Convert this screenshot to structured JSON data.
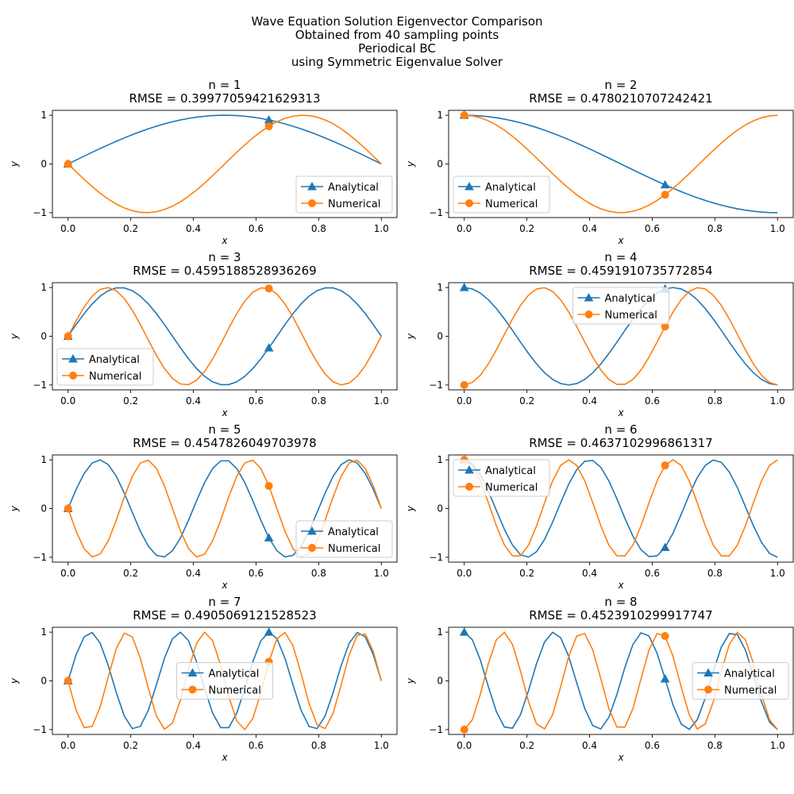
{
  "figure": {
    "suptitle": [
      "Wave Equation Solution Eigenvector Comparison",
      "Obtained from 40 sampling points",
      "Periodical BC",
      "using Symmetric Eigenvalue Solver"
    ]
  },
  "style": {
    "analytical_color": "#1f77b4",
    "numerical_color": "#ff7f0e",
    "analytical_marker": "triangle-up",
    "numerical_marker": "circle",
    "markevery_indices": [
      0,
      25
    ],
    "grid": false
  },
  "chart_data": [
    {
      "type": "line",
      "title": [
        "n = 1",
        "RMSE = 0.39977059421629313"
      ],
      "xlabel": "x",
      "ylabel": "y",
      "xlim": [
        -0.05,
        1.05
      ],
      "ylim": [
        -1.1,
        1.1
      ],
      "xticks": [
        "0.0",
        "0.2",
        "0.4",
        "0.6",
        "0.8",
        "1.0"
      ],
      "yticks": [
        "−1",
        "0",
        "1"
      ],
      "legend": {
        "position": "lower right",
        "entries": [
          "Analytical",
          "Numerical"
        ]
      },
      "series": [
        {
          "name": "Analytical",
          "formula": "y = sin(pi*x)",
          "n_points": 40,
          "x_range": [
            0,
            1
          ]
        },
        {
          "name": "Numerical",
          "formula": "y = -sin(2*pi*x)",
          "n_points": 40,
          "x_range": [
            0,
            1
          ]
        }
      ]
    },
    {
      "type": "line",
      "title": [
        "n = 2",
        "RMSE = 0.4780210707242421"
      ],
      "xlabel": "x",
      "ylabel": "y",
      "xlim": [
        -0.05,
        1.05
      ],
      "ylim": [
        -1.1,
        1.1
      ],
      "xticks": [
        "0.0",
        "0.2",
        "0.4",
        "0.6",
        "0.8",
        "1.0"
      ],
      "yticks": [
        "−1",
        "0",
        "1"
      ],
      "legend": {
        "position": "lower left",
        "entries": [
          "Analytical",
          "Numerical"
        ]
      },
      "series": [
        {
          "name": "Analytical",
          "formula": "y = cos(pi*x)",
          "n_points": 40,
          "x_range": [
            0,
            1
          ]
        },
        {
          "name": "Numerical",
          "formula": "y = cos(2*pi*x)",
          "n_points": 40,
          "x_range": [
            0,
            1
          ]
        }
      ]
    },
    {
      "type": "line",
      "title": [
        "n = 3",
        "RMSE = 0.4595188528936269"
      ],
      "xlabel": "x",
      "ylabel": "y",
      "xlim": [
        -0.05,
        1.05
      ],
      "ylim": [
        -1.1,
        1.1
      ],
      "xticks": [
        "0.0",
        "0.2",
        "0.4",
        "0.6",
        "0.8",
        "1.0"
      ],
      "yticks": [
        "−1",
        "0",
        "1"
      ],
      "legend": {
        "position": "lower left",
        "entries": [
          "Analytical",
          "Numerical"
        ]
      },
      "series": [
        {
          "name": "Analytical",
          "formula": "y = sin(3*pi*x)",
          "n_points": 40,
          "x_range": [
            0,
            1
          ]
        },
        {
          "name": "Numerical",
          "formula": "y = sin(4*pi*x)",
          "n_points": 40,
          "x_range": [
            0,
            1
          ]
        }
      ]
    },
    {
      "type": "line",
      "title": [
        "n = 4",
        "RMSE = 0.4591910735772854"
      ],
      "xlabel": "x",
      "ylabel": "y",
      "xlim": [
        -0.05,
        1.05
      ],
      "ylim": [
        -1.1,
        1.1
      ],
      "xticks": [
        "0.0",
        "0.2",
        "0.4",
        "0.6",
        "0.8",
        "1.0"
      ],
      "yticks": [
        "−1",
        "0",
        "1"
      ],
      "legend": {
        "position": "upper center",
        "entries": [
          "Analytical",
          "Numerical"
        ]
      },
      "series": [
        {
          "name": "Analytical",
          "formula": "y = cos(3*pi*x)",
          "n_points": 40,
          "x_range": [
            0,
            1
          ]
        },
        {
          "name": "Numerical",
          "formula": "y = -cos(4*pi*x)",
          "n_points": 40,
          "x_range": [
            0,
            1
          ]
        }
      ]
    },
    {
      "type": "line",
      "title": [
        "n = 5",
        "RMSE = 0.4547826049703978"
      ],
      "xlabel": "x",
      "ylabel": "y",
      "xlim": [
        -0.05,
        1.05
      ],
      "ylim": [
        -1.1,
        1.1
      ],
      "xticks": [
        "0.0",
        "0.2",
        "0.4",
        "0.6",
        "0.8",
        "1.0"
      ],
      "yticks": [
        "−1",
        "0",
        "1"
      ],
      "legend": {
        "position": "lower right",
        "entries": [
          "Analytical",
          "Numerical"
        ]
      },
      "series": [
        {
          "name": "Analytical",
          "formula": "y = sin(5*pi*x)",
          "n_points": 40,
          "x_range": [
            0,
            1
          ]
        },
        {
          "name": "Numerical",
          "formula": "y = -sin(6*pi*x)",
          "n_points": 40,
          "x_range": [
            0,
            1
          ]
        }
      ]
    },
    {
      "type": "line",
      "title": [
        "n = 6",
        "RMSE = 0.4637102996861317"
      ],
      "xlabel": "x",
      "ylabel": "y",
      "xlim": [
        -0.05,
        1.05
      ],
      "ylim": [
        -1.1,
        1.1
      ],
      "xticks": [
        "0.0",
        "0.2",
        "0.4",
        "0.6",
        "0.8",
        "1.0"
      ],
      "yticks": [
        "−1",
        "0",
        "1"
      ],
      "legend": {
        "position": "upper left",
        "entries": [
          "Analytical",
          "Numerical"
        ]
      },
      "series": [
        {
          "name": "Analytical",
          "formula": "y = cos(5*pi*x)",
          "n_points": 40,
          "x_range": [
            0,
            1
          ]
        },
        {
          "name": "Numerical",
          "formula": "y = cos(6*pi*x)",
          "n_points": 40,
          "x_range": [
            0,
            1
          ]
        }
      ]
    },
    {
      "type": "line",
      "title": [
        "n = 7",
        "RMSE = 0.4905069121528523"
      ],
      "xlabel": "x",
      "ylabel": "y",
      "xlim": [
        -0.05,
        1.05
      ],
      "ylim": [
        -1.1,
        1.1
      ],
      "xticks": [
        "0.0",
        "0.2",
        "0.4",
        "0.6",
        "0.8",
        "1.0"
      ],
      "yticks": [
        "−1",
        "0",
        "1"
      ],
      "legend": {
        "position": "center",
        "entries": [
          "Analytical",
          "Numerical"
        ]
      },
      "series": [
        {
          "name": "Analytical",
          "formula": "y = sin(7*pi*x)",
          "n_points": 40,
          "x_range": [
            0,
            1
          ]
        },
        {
          "name": "Numerical",
          "formula": "y = -sin(8*pi*x)",
          "n_points": 40,
          "x_range": [
            0,
            1
          ]
        }
      ]
    },
    {
      "type": "line",
      "title": [
        "n = 8",
        "RMSE = 0.4523910299917747"
      ],
      "xlabel": "x",
      "ylabel": "y",
      "xlim": [
        -0.05,
        1.05
      ],
      "ylim": [
        -1.1,
        1.1
      ],
      "xticks": [
        "0.0",
        "0.2",
        "0.4",
        "0.6",
        "0.8",
        "1.0"
      ],
      "yticks": [
        "−1",
        "0",
        "1"
      ],
      "legend": {
        "position": "center right",
        "entries": [
          "Analytical",
          "Numerical"
        ]
      },
      "series": [
        {
          "name": "Analytical",
          "formula": "y = cos(7*pi*x)",
          "n_points": 40,
          "x_range": [
            0,
            1
          ]
        },
        {
          "name": "Numerical",
          "formula": "y = -cos(8*pi*x)",
          "n_points": 40,
          "x_range": [
            0,
            1
          ]
        }
      ]
    }
  ]
}
